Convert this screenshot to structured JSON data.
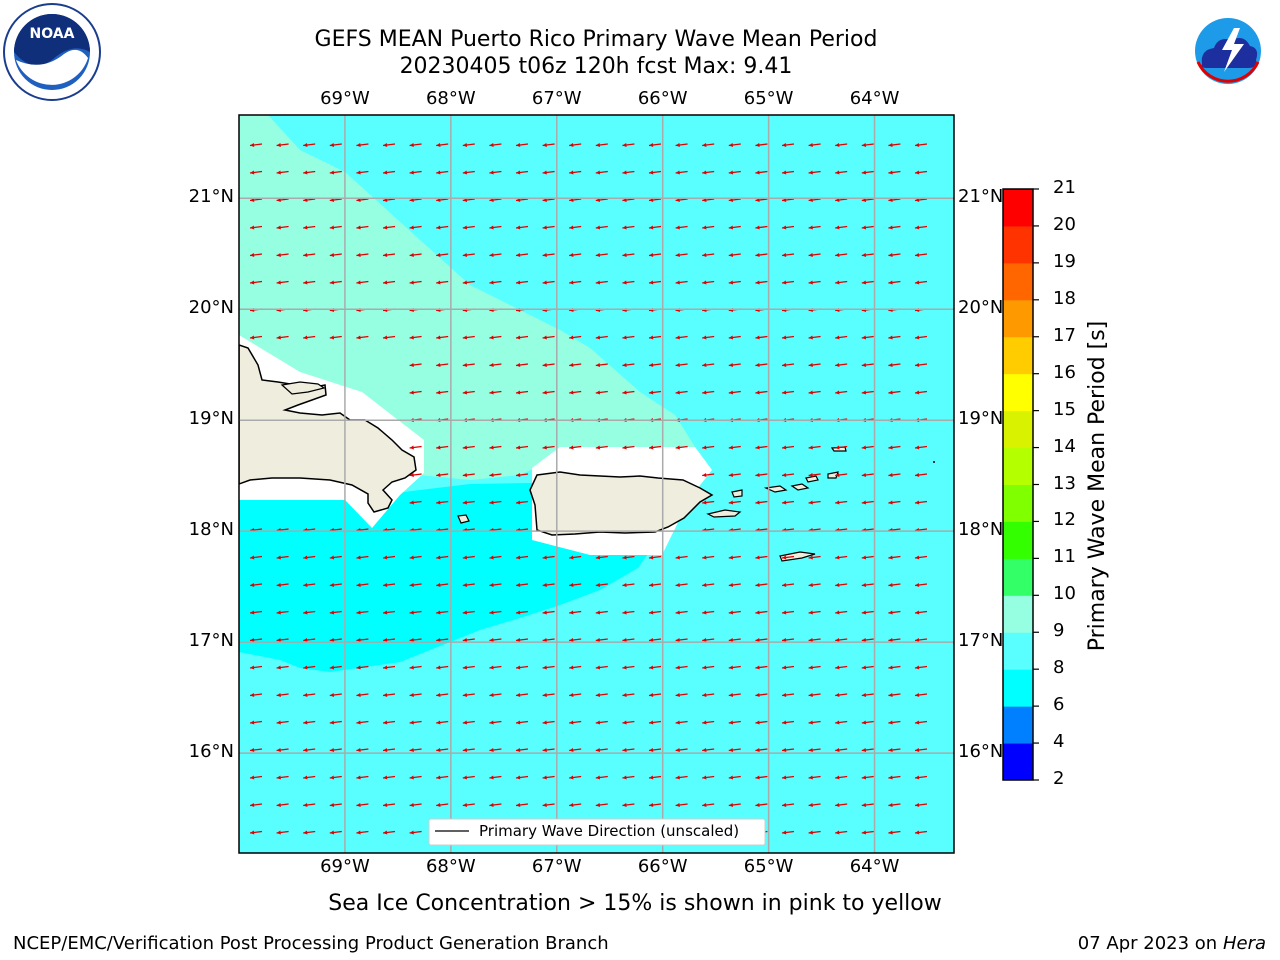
{
  "title": {
    "line1": "GEFS MEAN Puerto Rico Primary Wave Mean Period",
    "line2": "20230405 t06z 120h fcst   Max: 9.41"
  },
  "logos": {
    "noaa_text": "NOAA",
    "noaa_ring": "NATIONAL OCEANIC AND ATMOSPHERIC ADMINISTRATION · U.S. DEPARTMENT OF COMMERCE",
    "nws_ring": "NATIONAL WEATHER SERVICE"
  },
  "chart_data": {
    "type": "heatmap",
    "title": "GEFS MEAN Puerto Rico Primary Wave Mean Period",
    "x_ticks": [
      "69°W",
      "68°W",
      "67°W",
      "66°W",
      "65°W",
      "64°W"
    ],
    "y_ticks": [
      "21°N",
      "20°N",
      "19°N",
      "18°N",
      "17°N",
      "16°N"
    ],
    "x_values": [
      -69,
      -68,
      -67,
      -66,
      -65,
      -64
    ],
    "y_values": [
      21,
      20,
      19,
      18,
      17,
      16
    ],
    "xlim": [
      -70,
      -63.25
    ],
    "ylim": [
      15.1,
      21.75
    ],
    "grid": true,
    "colorbar": {
      "label": "Primary Wave Mean Period [s]",
      "ticks": [
        2,
        4,
        6,
        8,
        9,
        10,
        11,
        12,
        13,
        14,
        15,
        16,
        17,
        18,
        19,
        20,
        21
      ],
      "colors": [
        "#0000ff",
        "#0080ff",
        "#00ffff",
        "#59ffff",
        "#96ffe2",
        "#33ff66",
        "#33ff00",
        "#80ff00",
        "#b4ff00",
        "#d9f200",
        "#ffff00",
        "#ffcc00",
        "#ff9900",
        "#ff6600",
        "#ff3300",
        "#ff0000"
      ]
    },
    "max_value": 9.41,
    "wave_direction": "from east-northeast (arrows point west-southwest)",
    "legend": {
      "entry": "Primary Wave Direction (unscaled)",
      "placement": "bottom-center"
    },
    "field_colors": {
      "ocean_8_9": "#59ffff",
      "ocean_9_10": "#96ffe2",
      "ocean_6_8": "#00ffff",
      "land": "#efedde",
      "arrow": "#e00000"
    }
  },
  "note": "Sea Ice Concentration > 15% is shown in pink to yellow",
  "footer": {
    "left": "NCEP/EMC/Verification Post Processing Product Generation Branch",
    "right_date": "07 Apr 2023 on ",
    "right_machine": "Hera"
  }
}
